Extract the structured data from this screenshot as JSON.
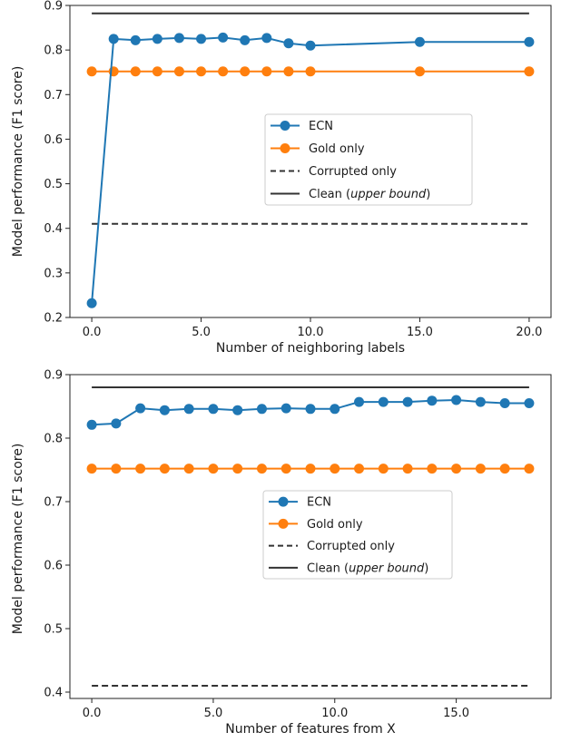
{
  "legend_labels": {
    "ecn": "ECN",
    "gold": "Gold only",
    "corrupted": "Corrupted only",
    "clean_prefix": "Clean (",
    "clean_italic": "upper bound",
    "clean_suffix": ")"
  },
  "colors": {
    "ecn": "#1f77b4",
    "gold": "#ff7f0e",
    "corrupted": "#333333",
    "clean": "#333333"
  },
  "chart_data": [
    {
      "type": "line",
      "xlabel": "Number of neighboring labels",
      "ylabel": "Model performance (F1 score)",
      "xlim": [
        -1,
        21
      ],
      "ylim": [
        0.2,
        0.9
      ],
      "xticks": [
        0,
        5,
        10,
        15,
        20
      ],
      "xtick_labels": [
        "0.0",
        "5.0",
        "10.0",
        "15.0",
        "20.0"
      ],
      "yticks": [
        0.2,
        0.3,
        0.4,
        0.5,
        0.6,
        0.7,
        0.8,
        0.9
      ],
      "ytick_labels": [
        "0.2",
        "0.3",
        "0.4",
        "0.5",
        "0.6",
        "0.7",
        "0.8",
        "0.9"
      ],
      "legend_position": "center-right",
      "series": [
        {
          "name": "ECN",
          "key": "ecn",
          "style": "marker-line",
          "x": [
            0,
            1,
            2,
            3,
            4,
            5,
            6,
            7,
            8,
            9,
            10,
            15,
            20
          ],
          "y": [
            0.232,
            0.825,
            0.822,
            0.825,
            0.827,
            0.825,
            0.828,
            0.822,
            0.827,
            0.815,
            0.81,
            0.818,
            0.818
          ]
        },
        {
          "name": "Gold only",
          "key": "gold",
          "style": "marker-line",
          "x": [
            0,
            1,
            2,
            3,
            4,
            5,
            6,
            7,
            8,
            9,
            10,
            15,
            20
          ],
          "y": [
            0.752,
            0.752,
            0.752,
            0.752,
            0.752,
            0.752,
            0.752,
            0.752,
            0.752,
            0.752,
            0.752,
            0.752,
            0.752
          ]
        },
        {
          "name": "Corrupted only",
          "key": "corrupted",
          "style": "dashed",
          "x": [
            0,
            20
          ],
          "y": [
            0.41,
            0.41
          ]
        },
        {
          "name": "Clean (upper bound)",
          "key": "clean",
          "style": "solid",
          "x": [
            0,
            20
          ],
          "y": [
            0.882,
            0.882
          ]
        }
      ]
    },
    {
      "type": "line",
      "xlabel": "Number of features from X",
      "ylabel": "Model performance (F1 score)",
      "xlim": [
        -0.9,
        18.9
      ],
      "ylim": [
        0.39,
        0.9
      ],
      "xticks": [
        0,
        5,
        10,
        15
      ],
      "xtick_labels": [
        "0.0",
        "5.0",
        "10.0",
        "15.0"
      ],
      "yticks": [
        0.4,
        0.5,
        0.6,
        0.7,
        0.8,
        0.9
      ],
      "ytick_labels": [
        "0.4",
        "0.5",
        "0.6",
        "0.7",
        "0.8",
        "0.9"
      ],
      "legend_position": "center-right",
      "series": [
        {
          "name": "ECN",
          "key": "ecn",
          "style": "marker-line",
          "x": [
            0,
            1,
            2,
            3,
            4,
            5,
            6,
            7,
            8,
            9,
            10,
            11,
            12,
            13,
            14,
            15,
            16,
            17,
            18
          ],
          "y": [
            0.821,
            0.823,
            0.847,
            0.844,
            0.846,
            0.846,
            0.844,
            0.846,
            0.847,
            0.846,
            0.846,
            0.857,
            0.857,
            0.857,
            0.859,
            0.86,
            0.857,
            0.855,
            0.855
          ]
        },
        {
          "name": "Gold only",
          "key": "gold",
          "style": "marker-line",
          "x": [
            0,
            1,
            2,
            3,
            4,
            5,
            6,
            7,
            8,
            9,
            10,
            11,
            12,
            13,
            14,
            15,
            16,
            17,
            18
          ],
          "y": [
            0.752,
            0.752,
            0.752,
            0.752,
            0.752,
            0.752,
            0.752,
            0.752,
            0.752,
            0.752,
            0.752,
            0.752,
            0.752,
            0.752,
            0.752,
            0.752,
            0.752,
            0.752,
            0.752
          ]
        },
        {
          "name": "Corrupted only",
          "key": "corrupted",
          "style": "dashed",
          "x": [
            0,
            18
          ],
          "y": [
            0.41,
            0.41
          ]
        },
        {
          "name": "Clean (upper bound)",
          "key": "clean",
          "style": "solid",
          "x": [
            0,
            18
          ],
          "y": [
            0.88,
            0.88
          ]
        }
      ]
    }
  ]
}
